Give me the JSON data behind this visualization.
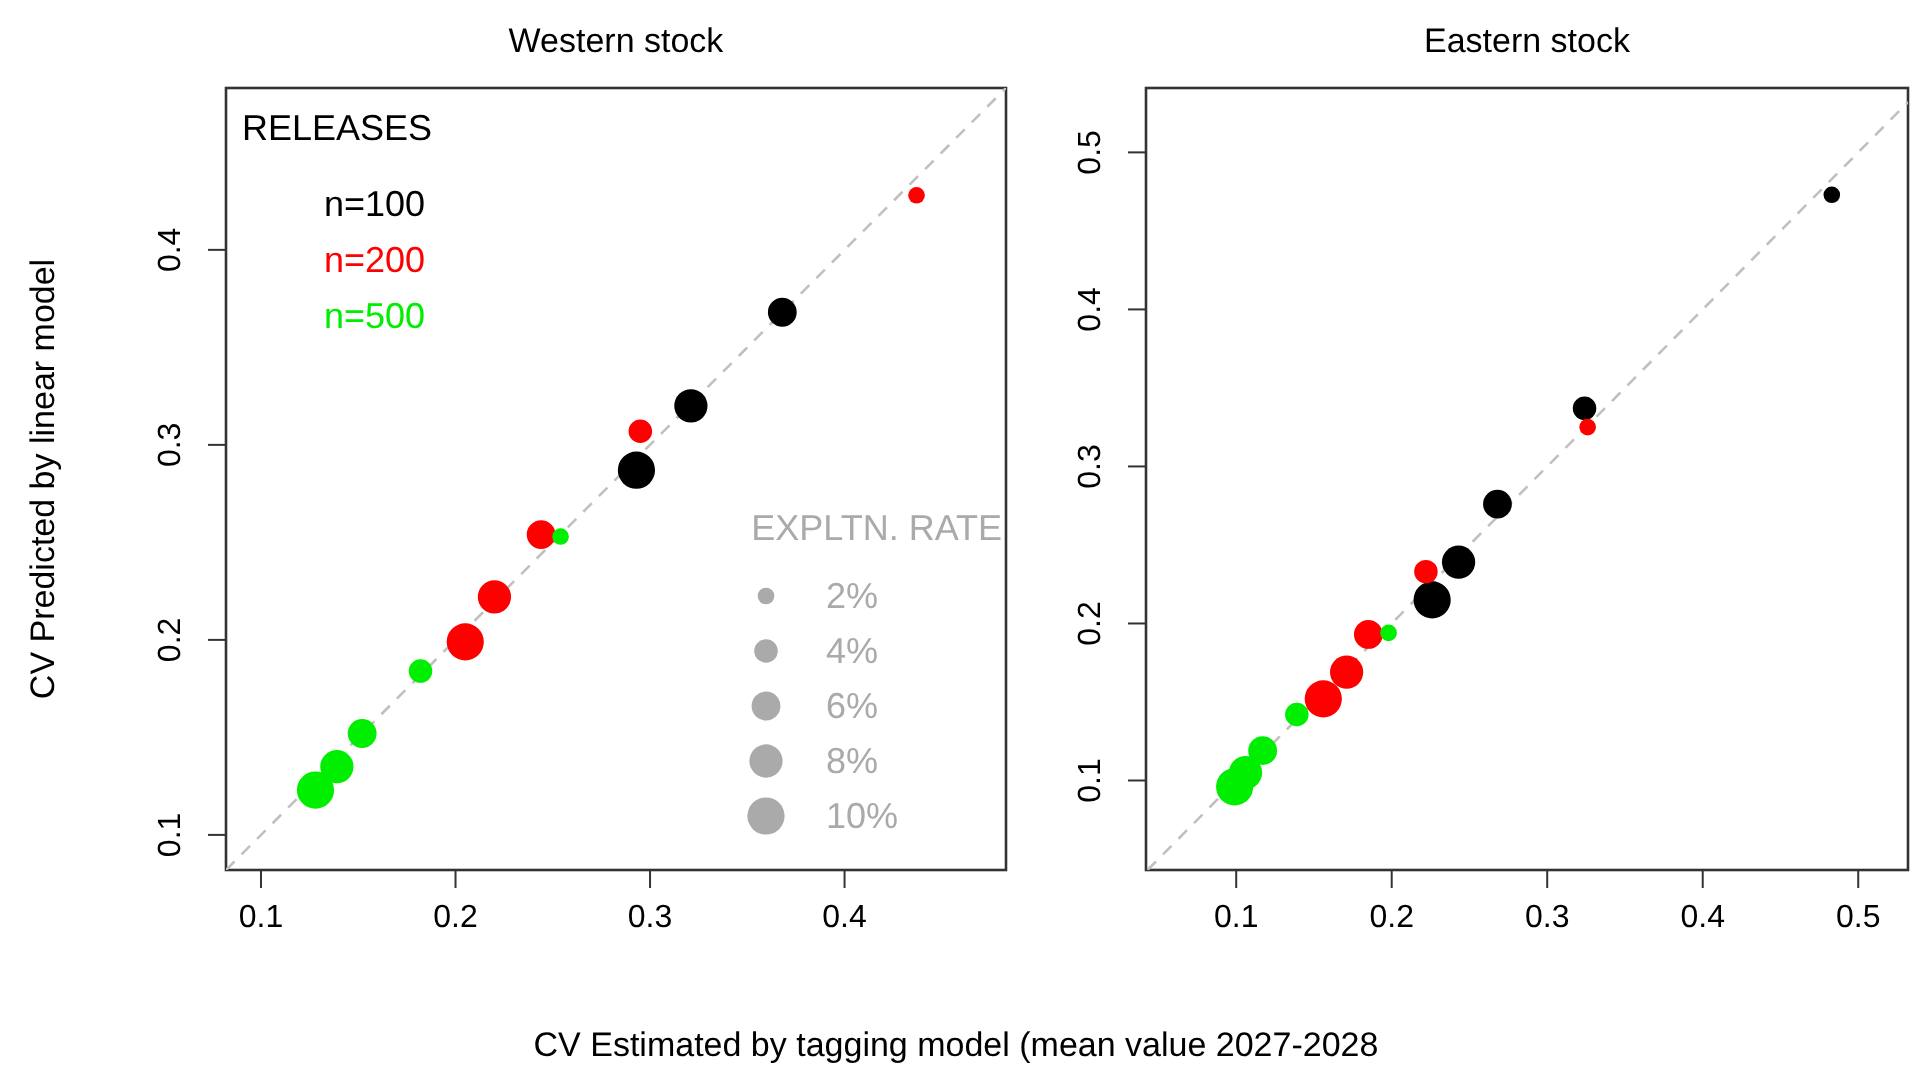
{
  "chart_data": [
    {
      "type": "bubble",
      "title": "Western stock",
      "xlabel": "CV Estimated by tagging model (mean value 2027-2028",
      "ylabel": "CV Predicted by linear model",
      "xlim": [
        0.082,
        0.483
      ],
      "ylim": [
        0.082,
        0.483
      ],
      "xticks": [
        0.1,
        0.2,
        0.3,
        0.4
      ],
      "yticks": [
        0.1,
        0.2,
        0.3,
        0.4
      ],
      "grid": false,
      "marker": "circle",
      "legend": "top left",
      "legend_title": "RELEASES",
      "size_legend": [
        {
          "value": 2,
          "label": "2%"
        },
        {
          "value": 4,
          "label": "4%"
        },
        {
          "value": 6,
          "label": "6%"
        },
        {
          "value": 8,
          "label": "8%"
        },
        {
          "value": 10,
          "label": "10%"
        }
      ],
      "annotations": [
        "EXPLTN. RATE"
      ],
      "series": [
        {
          "type": "line",
          "marker": "none",
          "color": "#c0c0c0",
          "line_style": "dashed",
          "x": [
            0.082,
            0.483
          ],
          "values": [
            0.082,
            0.483
          ]
        },
        {
          "name": "n=100",
          "color": "#000000",
          "x": [
            0.368,
            0.321,
            0.293
          ],
          "values": [
            0.368,
            0.32,
            0.287
          ],
          "sizes": [
            6,
            8,
            10
          ]
        },
        {
          "name": "n=200",
          "color": "#ff0000",
          "x": [
            0.437,
            0.295,
            0.244,
            0.22,
            0.205
          ],
          "values": [
            0.428,
            0.307,
            0.254,
            0.222,
            0.199
          ],
          "sizes": [
            2,
            4,
            6,
            8,
            10
          ]
        },
        {
          "name": "n=500",
          "color": "#00ee00",
          "x": [
            0.254,
            0.182,
            0.152,
            0.139,
            0.128
          ],
          "values": [
            0.253,
            0.184,
            0.152,
            0.135,
            0.123
          ],
          "sizes": [
            2,
            4,
            6,
            8,
            10
          ]
        }
      ]
    },
    {
      "type": "bubble",
      "title": "Eastern stock",
      "xlim": [
        0.042,
        0.532
      ],
      "ylim": [
        0.043,
        0.541
      ],
      "xticks": [
        0.1,
        0.2,
        0.3,
        0.4,
        0.5
      ],
      "yticks": [
        0.1,
        0.2,
        0.3,
        0.4,
        0.5
      ],
      "grid": false,
      "marker": "circle",
      "series": [
        {
          "type": "line",
          "marker": "none",
          "color": "#c0c0c0",
          "line_style": "dashed",
          "x": [
            0.043,
            0.532
          ],
          "values": [
            0.043,
            0.532
          ]
        },
        {
          "color": "#000000",
          "x": [
            0.483,
            0.324,
            0.268,
            0.243,
            0.226
          ],
          "values": [
            0.473,
            0.337,
            0.276,
            0.239,
            0.215
          ],
          "sizes": [
            0.2,
            0.4,
            0.6,
            0.8,
            1
          ]
        },
        {
          "color": "#ff0000",
          "x": [
            0.326,
            0.222,
            0.185,
            0.171,
            0.156
          ],
          "values": [
            0.325,
            0.233,
            0.193,
            0.169,
            0.152
          ],
          "sizes": [
            0.2,
            0.4,
            0.6,
            0.8,
            1
          ]
        },
        {
          "color": "#00ee00",
          "x": [
            0.198,
            0.139,
            0.117,
            0.106,
            0.099
          ],
          "values": [
            0.194,
            0.142,
            0.119,
            0.105,
            0.096
          ],
          "sizes": [
            0.2,
            0.4,
            0.6,
            0.8,
            1
          ]
        }
      ]
    }
  ]
}
